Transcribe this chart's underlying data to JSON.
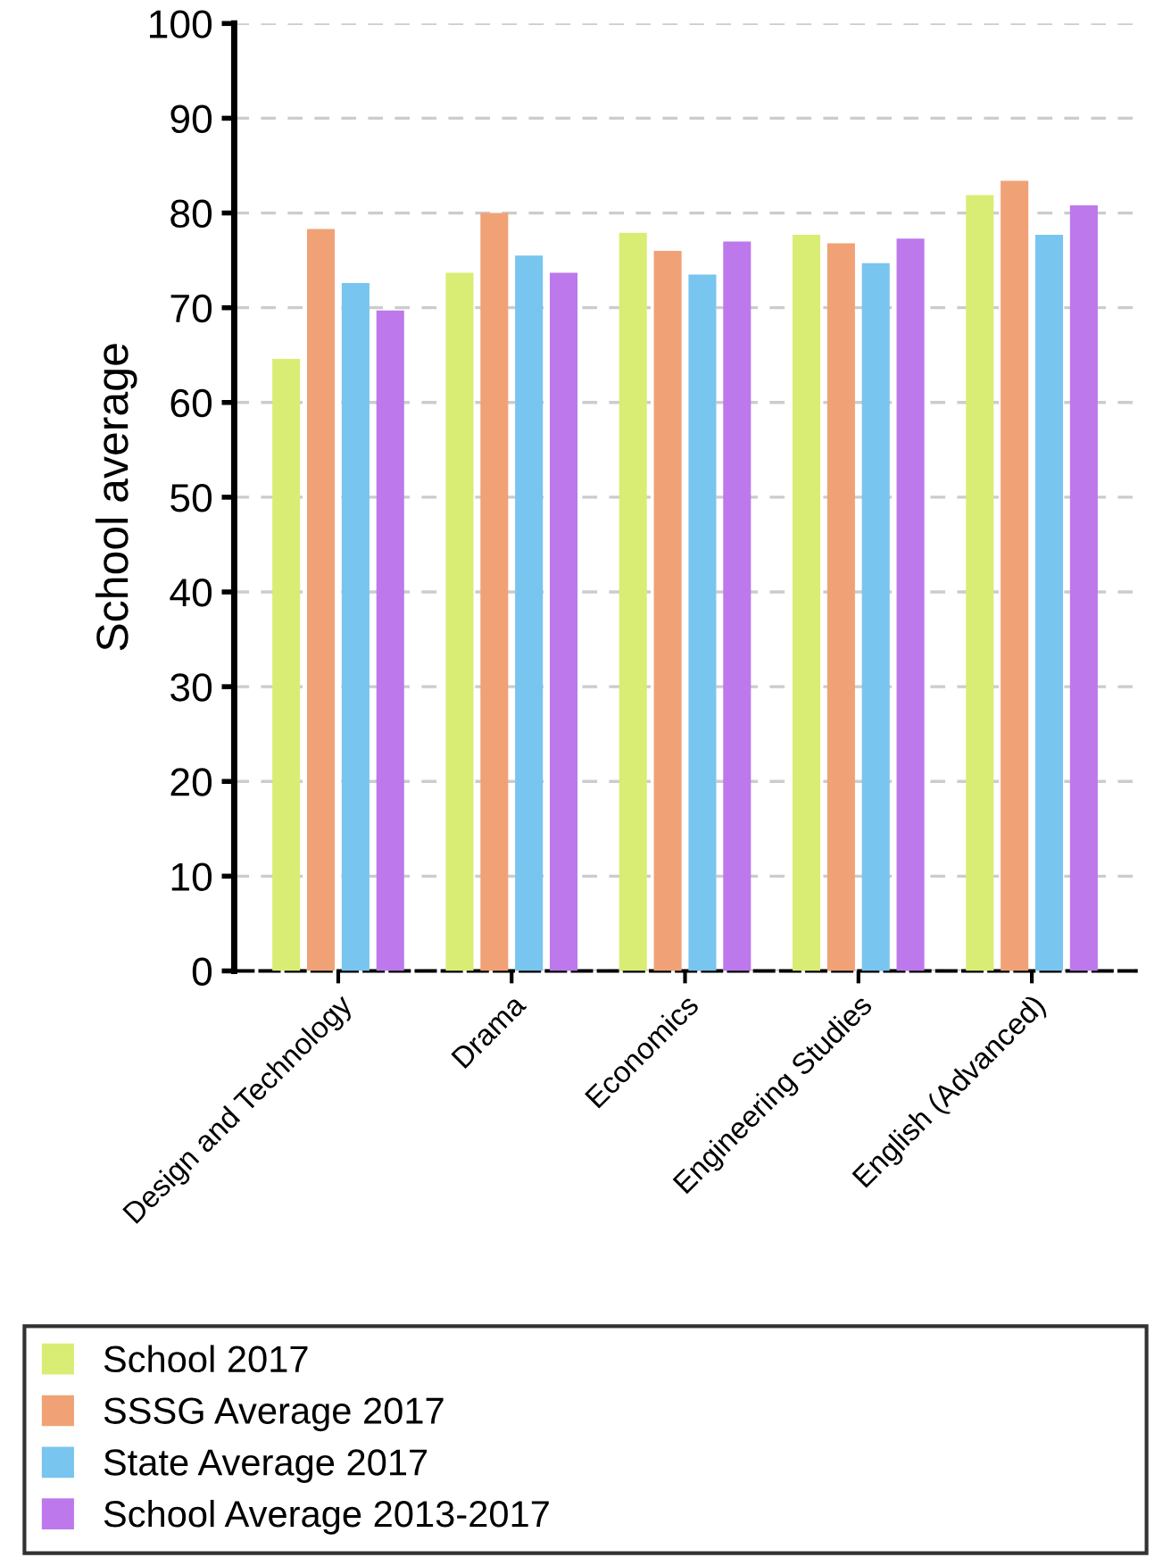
{
  "chart_data": {
    "type": "bar",
    "ylabel": "School average",
    "categories": [
      "Design and Technology",
      "Drama",
      "Economics",
      "Engineering Studies",
      "English (Advanced)"
    ],
    "series": [
      {
        "name": "School 2017",
        "color": "#d9ed74",
        "values": [
          64.6,
          73.7,
          77.9,
          77.7,
          81.9
        ]
      },
      {
        "name": "SSSG Average 2017",
        "color": "#f0a276",
        "values": [
          78.3,
          80.0,
          76.0,
          76.8,
          83.4
        ]
      },
      {
        "name": "State Average 2017",
        "color": "#78c5ef",
        "values": [
          72.6,
          75.5,
          73.5,
          74.7,
          77.7
        ]
      },
      {
        "name": "School Average 2013-2017",
        "color": "#bd78ec",
        "values": [
          69.7,
          73.7,
          77.0,
          77.3,
          80.8
        ]
      }
    ],
    "ylim": [
      0,
      100
    ],
    "yticks": [
      0,
      10,
      20,
      30,
      40,
      50,
      60,
      70,
      80,
      90,
      100
    ],
    "grid": "y",
    "legend": "bottom"
  }
}
